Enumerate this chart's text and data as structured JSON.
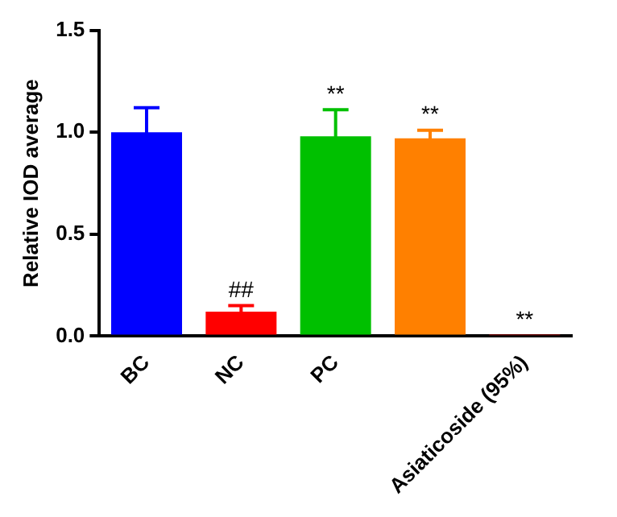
{
  "chart_data": {
    "type": "bar",
    "ylabel": "Relative IOD average",
    "categories": [
      "BC",
      "NC",
      "PC",
      null,
      "Asiaticoside (95%)"
    ],
    "values": [
      1.0,
      0.12,
      0.98,
      0.97,
      0.005
    ],
    "colors": [
      "#0000ff",
      "#ff0000",
      "#00c000",
      "#ff8000",
      "#c00000"
    ],
    "errors": [
      0.12,
      0.03,
      0.13,
      0.04,
      null
    ],
    "value_labels": [
      null,
      "##",
      "**",
      "**",
      "**"
    ],
    "ylim": [
      0,
      1.5
    ],
    "yticks": [
      {
        "value": 0,
        "label": "0.0"
      },
      {
        "value": 0.5,
        "label": "0.5"
      },
      {
        "value": 1,
        "label": "1.0"
      },
      {
        "value": 1.5,
        "label": "1.5"
      }
    ],
    "grid": false,
    "legend": false
  }
}
